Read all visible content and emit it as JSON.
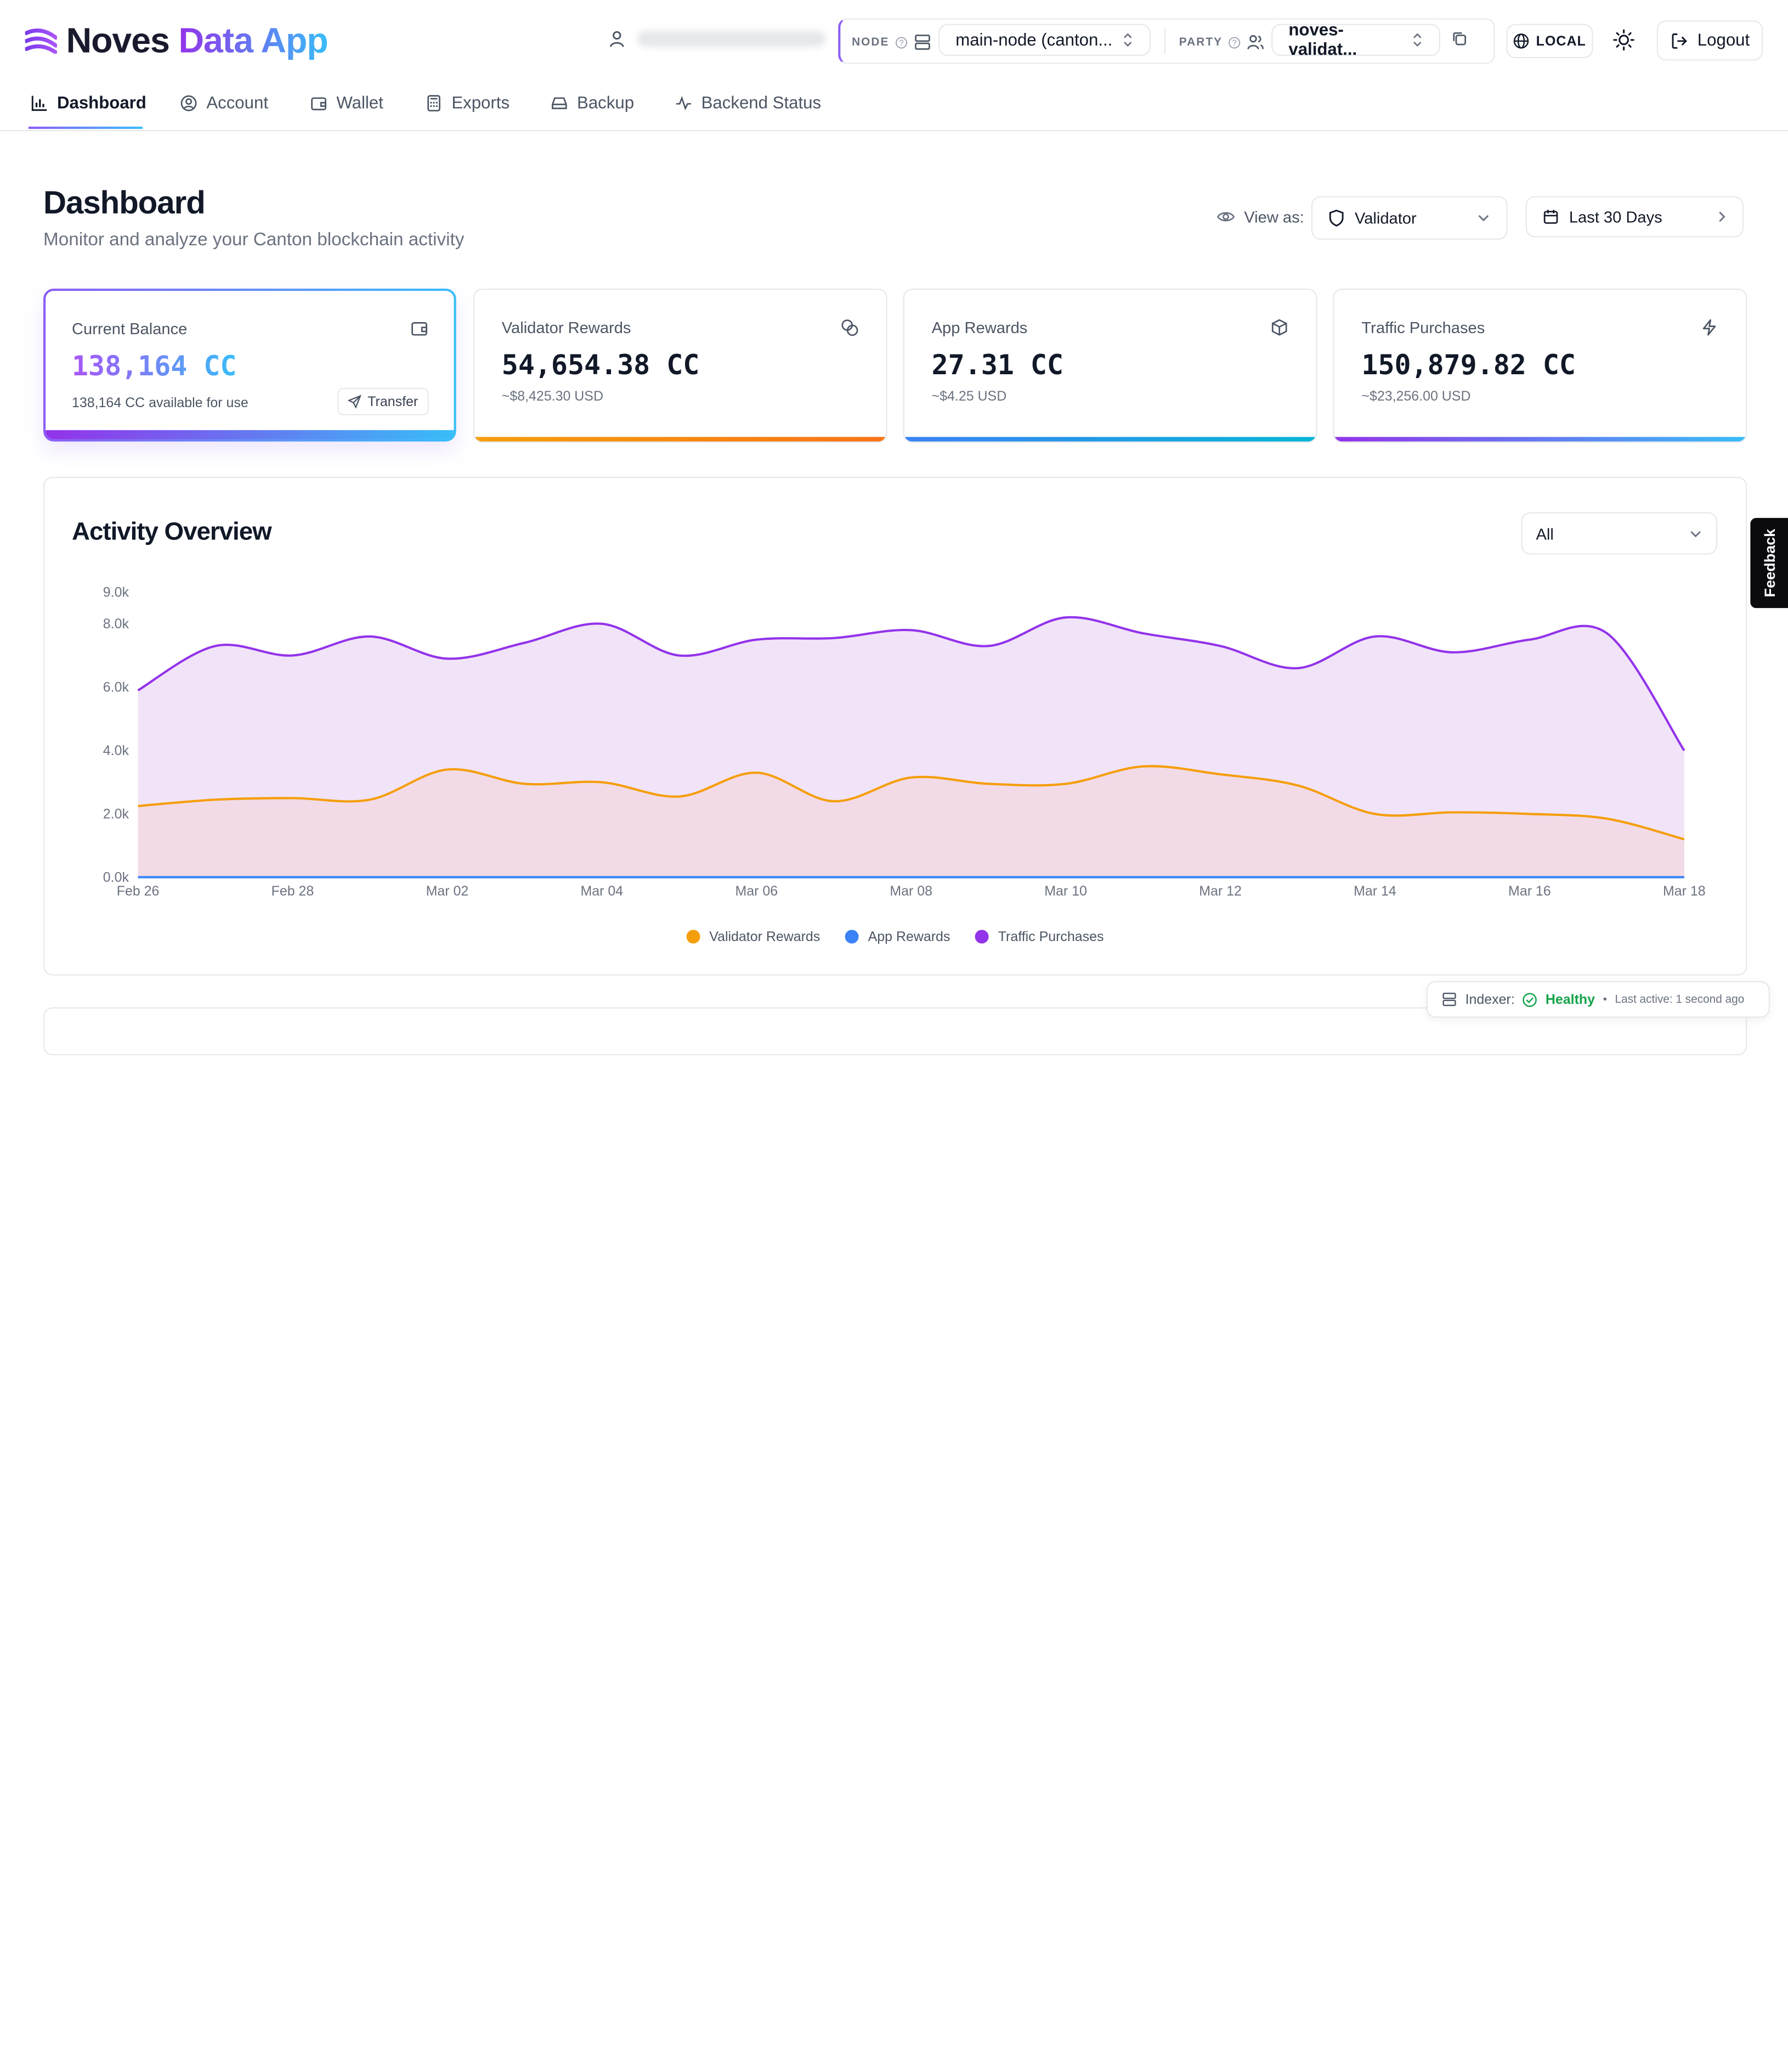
{
  "header": {
    "brand": {
      "word1": "Noves",
      "word2": "Data App"
    },
    "node": {
      "label": "NODE",
      "value": "main-node (canton..."
    },
    "party": {
      "label": "PARTY",
      "value": "noves-validat..."
    },
    "env": "LOCAL",
    "logout": "Logout"
  },
  "tabs": [
    {
      "label": "Dashboard"
    },
    {
      "label": "Account"
    },
    {
      "label": "Wallet"
    },
    {
      "label": "Exports"
    },
    {
      "label": "Backup"
    },
    {
      "label": "Backend Status"
    }
  ],
  "page": {
    "title": "Dashboard",
    "subtitle": "Monitor and analyze your Canton blockchain activity",
    "view_as_label": "View as:",
    "view_as_value": "Validator",
    "range": "Last 30 Days"
  },
  "cards": {
    "balance": {
      "title": "Current Balance",
      "value": "138,164 CC",
      "sub": "138,164 CC available for use",
      "action": "Transfer"
    },
    "validator": {
      "title": "Validator Rewards",
      "value": "54,654.38 CC",
      "sub": "~$8,425.30 USD"
    },
    "app": {
      "title": "App Rewards",
      "value": "27.31 CC",
      "sub": "~$4.25 USD"
    },
    "traffic": {
      "title": "Traffic Purchases",
      "value": "150,879.82 CC",
      "sub": "~$23,256.00 USD"
    }
  },
  "activity": {
    "title": "Activity Overview",
    "filter": "All"
  },
  "feedback": "Feedback",
  "status": {
    "label": "Indexer:",
    "state": "Healthy",
    "last": "Last active: 1 second ago"
  },
  "colors": {
    "validator": "#f59e0b",
    "app": "#3b82f6",
    "traffic": "#9333ea"
  },
  "chart_data": {
    "type": "area",
    "x": [
      "Feb 26",
      "Feb 27",
      "Feb 28",
      "Mar 01",
      "Mar 02",
      "Mar 03",
      "Mar 04",
      "Mar 05",
      "Mar 06",
      "Mar 07",
      "Mar 08",
      "Mar 09",
      "Mar 10",
      "Mar 11",
      "Mar 12",
      "Mar 13",
      "Mar 14",
      "Mar 15",
      "Mar 16",
      "Mar 17",
      "Mar 18"
    ],
    "x_ticks": [
      "Feb 26",
      "Feb 28",
      "Mar 02",
      "Mar 04",
      "Mar 06",
      "Mar 08",
      "Mar 10",
      "Mar 12",
      "Mar 14",
      "Mar 16",
      "Mar 18"
    ],
    "y_ticks": [
      "0.0k",
      "2.0k",
      "4.0k",
      "6.0k",
      "8.0k",
      "9.0k"
    ],
    "ylim": [
      0,
      9000
    ],
    "series": [
      {
        "name": "Validator Rewards",
        "values": [
          2250,
          2450,
          2500,
          2450,
          3400,
          2950,
          3000,
          2550,
          3300,
          2400,
          3150,
          2950,
          2950,
          3500,
          3250,
          2900,
          2000,
          2050,
          2000,
          1850,
          1200
        ]
      },
      {
        "name": "App Rewards",
        "values": [
          5,
          5,
          5,
          5,
          5,
          5,
          5,
          5,
          5,
          5,
          5,
          5,
          5,
          5,
          5,
          5,
          5,
          5,
          5,
          5,
          5
        ]
      },
      {
        "name": "Traffic Purchases",
        "values": [
          5900,
          7300,
          7000,
          7600,
          6900,
          7400,
          8000,
          7000,
          7500,
          7550,
          7800,
          7300,
          8200,
          7700,
          7300,
          6600,
          7600,
          7100,
          7500,
          7700,
          4000
        ]
      }
    ],
    "legend": "bottom-center",
    "grid": false
  }
}
